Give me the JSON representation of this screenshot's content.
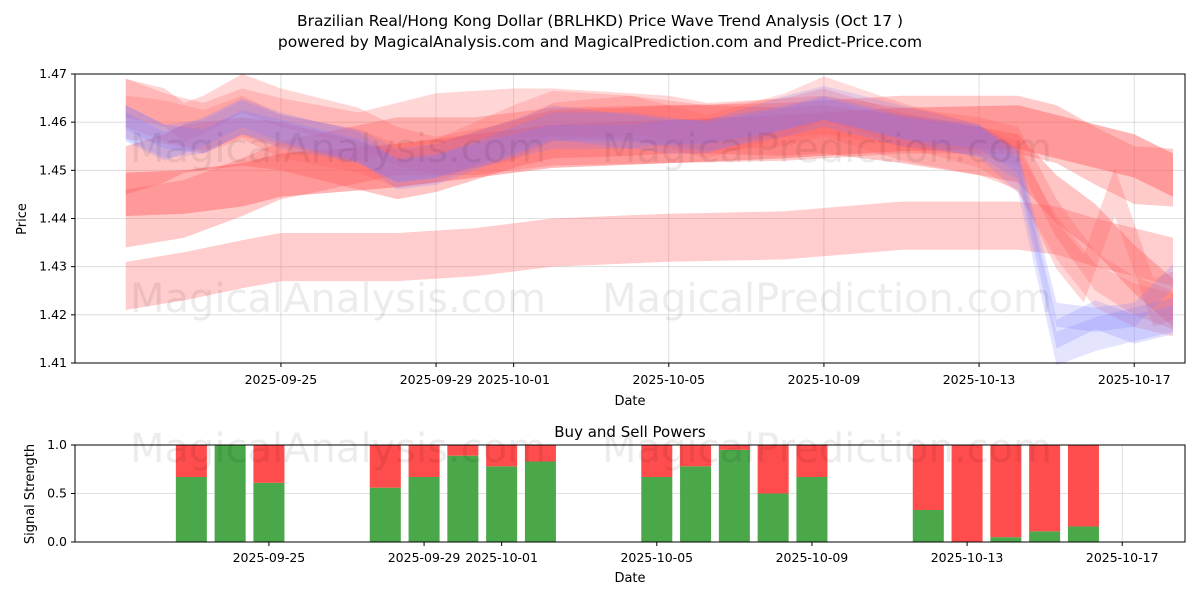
{
  "colors": {
    "band_red": "#ff5a5a",
    "band_blue": "#7a7aff",
    "buy_green": "#4aa84a",
    "sell_red": "#ff4c4c"
  },
  "watermarks": [
    "MagicalAnalysis.com",
    "MagicalPrediction.com"
  ],
  "chart_data": [
    {
      "id": "price",
      "type": "area",
      "title": "Brazilian Real/Hong Kong Dollar (BRLHKD) Price Wave Trend Analysis (Oct 17 )",
      "subtitle": "powered by MagicalAnalysis.com and MagicalPrediction.com and Predict-Price.com",
      "xlabel": "Date",
      "ylabel": "Price",
      "xlim": [
        "2025-09-20",
        "2025-10-18"
      ],
      "ylim": [
        1.41,
        1.47
      ],
      "yticks": [
        "1.41",
        "1.42",
        "1.43",
        "1.44",
        "1.45",
        "1.46",
        "1.47"
      ],
      "xticks": [
        "2025-09-25",
        "2025-09-29",
        "2025-10-01",
        "2025-10-05",
        "2025-10-09",
        "2025-10-13",
        "2025-10-17"
      ],
      "grid": true,
      "series": [
        {
          "name": "band-1",
          "color": "red",
          "opacity": 0.45,
          "width": 0.009,
          "x": [
            0,
            1.5,
            3,
            4,
            7,
            9,
            11,
            14,
            17,
            20,
            23,
            26,
            27
          ],
          "values": [
            1.445,
            1.4455,
            1.447,
            1.449,
            1.451,
            1.453,
            1.455,
            1.456,
            1.457,
            1.4585,
            1.459,
            1.453,
            1.449
          ]
        },
        {
          "name": "band-2",
          "color": "red",
          "opacity": 0.3,
          "width": 0.01,
          "x": [
            0,
            1.5,
            3,
            4,
            7,
            9,
            11,
            14,
            17,
            20,
            23,
            24,
            25,
            26,
            27
          ],
          "values": [
            1.426,
            1.428,
            1.4305,
            1.432,
            1.432,
            1.433,
            1.435,
            1.436,
            1.4365,
            1.4385,
            1.4385,
            1.4375,
            1.435,
            1.433,
            1.431
          ]
        },
        {
          "name": "band-3",
          "color": "red",
          "opacity": 0.32,
          "width": 0.012,
          "x": [
            0,
            1.5,
            3,
            4,
            7,
            9,
            11,
            14,
            17,
            20,
            23,
            24,
            25,
            26,
            27
          ],
          "values": [
            1.44,
            1.442,
            1.4465,
            1.45,
            1.455,
            1.455,
            1.457,
            1.4575,
            1.458,
            1.4595,
            1.4595,
            1.4575,
            1.453,
            1.449,
            1.4485
          ]
        },
        {
          "name": "band-4",
          "color": "red",
          "opacity": 0.35,
          "width": 0.01,
          "x": [
            0,
            1,
            1.5,
            2,
            3,
            4,
            6,
            7,
            8,
            10,
            11,
            13,
            14,
            15,
            17,
            18,
            20,
            22,
            23,
            24,
            25,
            26,
            27
          ],
          "values": [
            1.45,
            1.4525,
            1.4545,
            1.455,
            1.456,
            1.455,
            1.451,
            1.449,
            1.4505,
            1.4555,
            1.4575,
            1.458,
            1.4585,
            1.4585,
            1.458,
            1.4585,
            1.4565,
            1.454,
            1.4525,
            1.444,
            1.438,
            1.4295,
            1.4225
          ]
        },
        {
          "name": "band-5",
          "color": "red",
          "opacity": 0.25,
          "width": 0.008,
          "x": [
            0,
            1,
            1.5,
            2,
            3,
            4,
            6,
            7,
            8,
            10,
            11,
            13,
            14,
            15,
            17,
            18,
            20,
            22,
            23,
            24,
            25,
            26,
            27
          ],
          "values": [
            1.465,
            1.463,
            1.46,
            1.4615,
            1.466,
            1.463,
            1.459,
            1.455,
            1.453,
            1.456,
            1.46,
            1.4615,
            1.4605,
            1.4595,
            1.461,
            1.4615,
            1.459,
            1.457,
            1.455,
            1.44,
            1.429,
            1.424,
            1.421
          ]
        },
        {
          "name": "band-6",
          "color": "red",
          "opacity": 0.22,
          "width": 0.009,
          "x": [
            0,
            1,
            2,
            3,
            4,
            6,
            7,
            8,
            10,
            11,
            13,
            14,
            15,
            17,
            18,
            20,
            22,
            23,
            24,
            25,
            26,
            27
          ],
          "values": [
            1.461,
            1.46,
            1.458,
            1.461,
            1.457,
            1.454,
            1.451,
            1.452,
            1.459,
            1.462,
            1.461,
            1.459,
            1.457,
            1.4615,
            1.465,
            1.4595,
            1.455,
            1.45,
            1.436,
            1.426,
            1.422,
            1.42
          ]
        },
        {
          "name": "band-7",
          "color": "red",
          "opacity": 0.25,
          "width": 0.01,
          "x": [
            0,
            1,
            2,
            3,
            4,
            6,
            7,
            8,
            10,
            11,
            13,
            14,
            15,
            17,
            18,
            20,
            22,
            23,
            24,
            24.7,
            25.5,
            26.5,
            27
          ],
          "values": [
            1.464,
            1.461,
            1.459,
            1.462,
            1.46,
            1.457,
            1.459,
            1.461,
            1.462,
            1.462,
            1.461,
            1.4605,
            1.459,
            1.46,
            1.462,
            1.457,
            1.454,
            1.451,
            1.4345,
            1.4275,
            1.4455,
            1.4225,
            1.424
          ]
        },
        {
          "name": "band-8",
          "color": "blue",
          "opacity": 0.22,
          "width": 0.005,
          "x": [
            0,
            1,
            2,
            3,
            4,
            6,
            7,
            8,
            10,
            11,
            13,
            14,
            15,
            17,
            18,
            20,
            22,
            23,
            24,
            25,
            26,
            27
          ],
          "values": [
            1.461,
            1.457,
            1.456,
            1.46,
            1.458,
            1.454,
            1.45,
            1.451,
            1.455,
            1.457,
            1.457,
            1.458,
            1.458,
            1.461,
            1.463,
            1.459,
            1.457,
            1.452,
            1.42,
            1.419,
            1.42,
            1.428
          ]
        },
        {
          "name": "band-9",
          "color": "blue",
          "opacity": 0.22,
          "width": 0.006,
          "x": [
            0,
            1,
            2,
            3,
            4,
            6,
            7,
            8,
            10,
            11,
            13,
            14,
            15,
            17,
            18,
            20,
            22,
            23,
            24,
            25,
            26,
            27
          ],
          "values": [
            1.459,
            1.455,
            1.458,
            1.462,
            1.459,
            1.455,
            1.449,
            1.45,
            1.456,
            1.459,
            1.459,
            1.458,
            1.457,
            1.46,
            1.462,
            1.458,
            1.456,
            1.451,
            1.416,
            1.42,
            1.417,
            1.419
          ]
        },
        {
          "name": "band-10",
          "color": "blue",
          "opacity": 0.2,
          "width": 0.007,
          "x": [
            0,
            1,
            2,
            3,
            4,
            6,
            7,
            8,
            10,
            11,
            13,
            14,
            15,
            17,
            18,
            20,
            22,
            23,
            24,
            25,
            26,
            27
          ],
          "values": [
            1.46,
            1.456,
            1.457,
            1.461,
            1.458,
            1.455,
            1.451,
            1.452,
            1.457,
            1.46,
            1.458,
            1.457,
            1.457,
            1.462,
            1.464,
            1.46,
            1.456,
            1.449,
            1.413,
            1.416,
            1.418,
            1.42
          ]
        }
      ]
    },
    {
      "id": "signals",
      "type": "bar",
      "title": "Buy and Sell Powers",
      "xlabel": "Date",
      "ylabel": "Signal Strength",
      "xlim": [
        "2025-09-20",
        "2025-10-18"
      ],
      "ylim": [
        0,
        1.0
      ],
      "yticks": [
        "0.0",
        "0.5",
        "1.0"
      ],
      "xticks": [
        "2025-09-25",
        "2025-09-29",
        "2025-10-01",
        "2025-10-05",
        "2025-10-09",
        "2025-10-13",
        "2025-10-17"
      ],
      "grid": true,
      "categories": [
        "2025-09-23",
        "2025-09-24",
        "2025-09-25",
        "2025-09-28",
        "2025-09-29",
        "2025-09-30",
        "2025-10-01",
        "2025-10-02",
        "2025-10-05",
        "2025-10-06",
        "2025-10-07",
        "2025-10-08",
        "2025-10-09",
        "2025-10-12",
        "2025-10-13",
        "2025-10-14",
        "2025-10-15",
        "2025-10-16"
      ],
      "series": [
        {
          "name": "Buy",
          "color": "green",
          "values": [
            0.67,
            1.0,
            0.61,
            0.56,
            0.67,
            0.89,
            0.78,
            0.83,
            0.67,
            0.78,
            0.95,
            0.5,
            0.67,
            0.33,
            0.0,
            0.05,
            0.11,
            0.16
          ]
        },
        {
          "name": "Sell",
          "color": "red",
          "values": [
            0.33,
            0.0,
            0.39,
            0.44,
            0.33,
            0.11,
            0.22,
            0.17,
            0.33,
            0.22,
            0.05,
            0.5,
            0.33,
            0.67,
            1.0,
            0.95,
            0.89,
            0.84
          ]
        }
      ]
    }
  ]
}
